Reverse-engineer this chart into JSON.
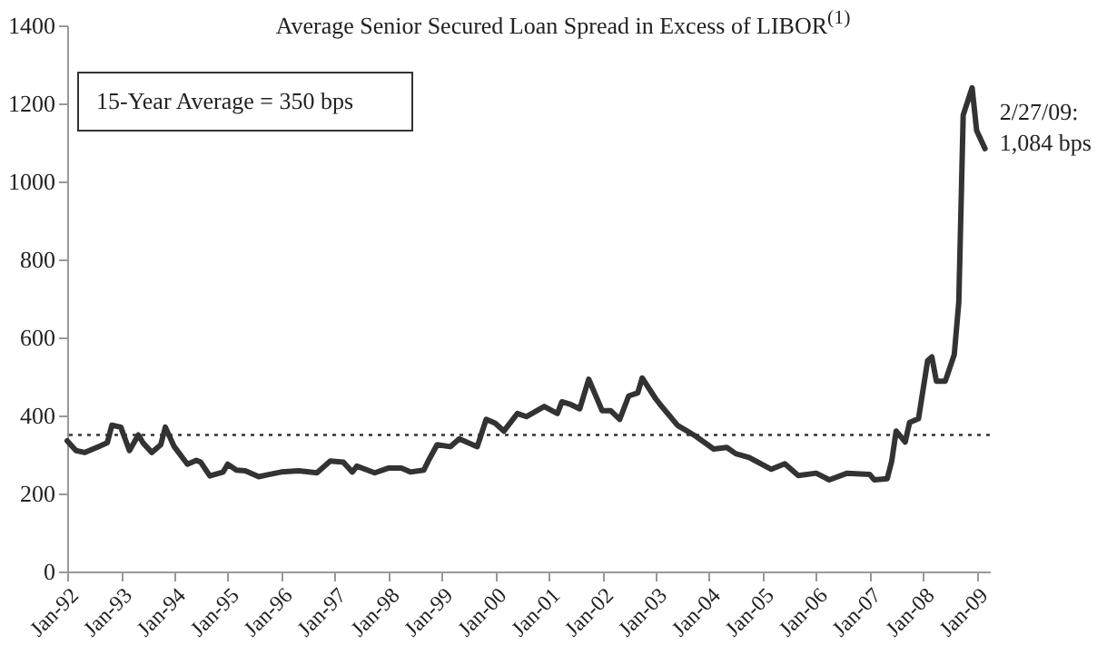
{
  "chart_data": {
    "type": "line",
    "title": "Average Senior Secured Loan Spread in Excess of LIBOR$^{(1)}$",
    "x": [
      "1992-01",
      "1992-03",
      "1992-05",
      "1992-08",
      "1992-10",
      "1992-11",
      "1993-01",
      "1993-03",
      "1993-05",
      "1993-06",
      "1993-08",
      "1993-10",
      "1993-11",
      "1994-01",
      "1994-04",
      "1994-06",
      "1994-07",
      "1994-09",
      "1994-12",
      "1995-01",
      "1995-03",
      "1995-05",
      "1995-08",
      "1995-10",
      "1996-01",
      "1996-05",
      "1996-09",
      "1996-12",
      "1997-03",
      "1997-05",
      "1997-06",
      "1997-10",
      "1998-01",
      "1998-04",
      "1998-06",
      "1998-09",
      "1998-10",
      "1998-12",
      "1999-03",
      "1999-05",
      "1999-09",
      "1999-11",
      "2000-01",
      "2000-03",
      "2000-06",
      "2000-08",
      "2000-12",
      "2001-03",
      "2001-04",
      "2001-06",
      "2001-08",
      "2001-10",
      "2002-01",
      "2002-03",
      "2002-05",
      "2002-07",
      "2002-09",
      "2002-10",
      "2003-01",
      "2003-02",
      "2003-06",
      "2003-10",
      "2004-02",
      "2004-05",
      "2004-07",
      "2004-10",
      "2005-03",
      "2005-06",
      "2005-09",
      "2006-01",
      "2006-04",
      "2006-08",
      "2007-01",
      "2007-02",
      "2007-05",
      "2007-06",
      "2007-07",
      "2007-09",
      "2007-10",
      "2007-12",
      "2008-02",
      "2008-03",
      "2008-04",
      "2008-06",
      "2008-08",
      "2008-09",
      "2008-10",
      "2008-12",
      "2009-01",
      "2009-02-27"
    ],
    "series": [
      {
        "color": "#333333",
        "values": [
          335,
          310,
          305,
          320,
          330,
          375,
          370,
          310,
          350,
          330,
          305,
          325,
          370,
          320,
          275,
          285,
          280,
          245,
          255,
          275,
          260,
          258,
          243,
          248,
          255,
          258,
          253,
          283,
          280,
          255,
          270,
          253,
          265,
          265,
          255,
          260,
          283,
          325,
          320,
          340,
          320,
          390,
          380,
          360,
          405,
          397,
          423,
          405,
          435,
          428,
          417,
          493,
          412,
          412,
          390,
          450,
          458,
          496,
          443,
          428,
          374,
          347,
          314,
          318,
          302,
          292,
          262,
          276,
          246,
          252,
          235,
          252,
          249,
          235,
          238,
          283,
          360,
          332,
          382,
          392,
          540,
          550,
          488,
          488,
          556,
          690,
          1170,
          1240,
          1130,
          1084
        ]
      }
    ],
    "xlim": [
      "1992-01",
      "2009-04"
    ],
    "xticks": [
      {
        "value": "1992-01",
        "label": "Jan-92"
      },
      {
        "value": "1993-01",
        "label": "Jan-93"
      },
      {
        "value": "1994-01",
        "label": "Jan-94"
      },
      {
        "value": "1995-01",
        "label": "Jan-95"
      },
      {
        "value": "1996-01",
        "label": "Jan-96"
      },
      {
        "value": "1997-01",
        "label": "Jan-97"
      },
      {
        "value": "1998-01",
        "label": "Jan-98"
      },
      {
        "value": "1999-01",
        "label": "Jan-99"
      },
      {
        "value": "2000-01",
        "label": "Jan-00"
      },
      {
        "value": "2001-01",
        "label": "Jan-01"
      },
      {
        "value": "2002-01",
        "label": "Jan-02"
      },
      {
        "value": "2003-01",
        "label": "Jan-03"
      },
      {
        "value": "2004-01",
        "label": "Jan-04"
      },
      {
        "value": "2005-01",
        "label": "Jan-05"
      },
      {
        "value": "2006-01",
        "label": "Jan-06"
      },
      {
        "value": "2007-01",
        "label": "Jan-07"
      },
      {
        "value": "2008-01",
        "label": "Jan-08"
      },
      {
        "value": "2009-01",
        "label": "Jan-09"
      }
    ],
    "ylim": [
      0,
      1400
    ],
    "yticks": [
      0,
      200,
      400,
      600,
      800,
      1000,
      1200,
      1400
    ],
    "grid": false,
    "marker": "none",
    "line_style": "solid",
    "ref_lines": [
      {
        "axis": "y",
        "value": 350,
        "line_style": "dotted",
        "color": "#333333"
      }
    ],
    "annotations": [
      "15-Year Average = 350 bps",
      {
        "text": "2/27/09:\n1,084 bps",
        "x": "2009-02-27",
        "y": 1084
      }
    ]
  }
}
